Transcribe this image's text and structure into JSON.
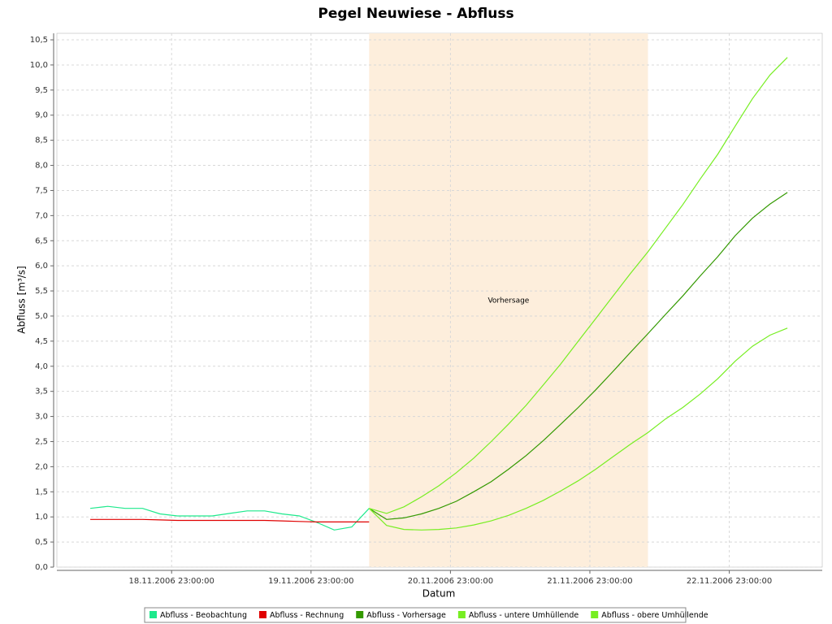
{
  "chart_data": {
    "type": "line",
    "title": "Pegel Neuwiese - Abfluss",
    "xlabel": "Datum",
    "ylabel": "Abfluss [m³/s]",
    "xlim": [
      "2006-11-18T03:15:00",
      "2006-11-23T15:00:00"
    ],
    "xticks": [
      {
        "value": "2006-11-18T23:00:00",
        "label": "18.11.2006 23:00:00"
      },
      {
        "value": "2006-11-19T23:00:00",
        "label": "19.11.2006 23:00:00"
      },
      {
        "value": "2006-11-20T23:00:00",
        "label": "20.11.2006 23:00:00"
      },
      {
        "value": "2006-11-21T23:00:00",
        "label": "21.11.2006 23:00:00"
      },
      {
        "value": "2006-11-22T23:00:00",
        "label": "22.11.2006 23:00:00"
      }
    ],
    "ylim": [
      0,
      10.63
    ],
    "yticks": [
      {
        "value": 0,
        "label": "0,0"
      },
      {
        "value": 0.5,
        "label": "0,5"
      },
      {
        "value": 1,
        "label": "1,0"
      },
      {
        "value": 1.5,
        "label": "1,5"
      },
      {
        "value": 2,
        "label": "2,0"
      },
      {
        "value": 2.5,
        "label": "2,5"
      },
      {
        "value": 3,
        "label": "3,0"
      },
      {
        "value": 3.5,
        "label": "3,5"
      },
      {
        "value": 4,
        "label": "4,0"
      },
      {
        "value": 4.5,
        "label": "4,5"
      },
      {
        "value": 5,
        "label": "5,0"
      },
      {
        "value": 5.5,
        "label": "5,5"
      },
      {
        "value": 6,
        "label": "6,0"
      },
      {
        "value": 6.5,
        "label": "6,5"
      },
      {
        "value": 7,
        "label": "7,0"
      },
      {
        "value": 7.5,
        "label": "7,5"
      },
      {
        "value": 8,
        "label": "8,0"
      },
      {
        "value": 8.5,
        "label": "8,5"
      },
      {
        "value": 9,
        "label": "9,0"
      },
      {
        "value": 9.5,
        "label": "9,5"
      },
      {
        "value": 10,
        "label": "10,0"
      },
      {
        "value": 10.5,
        "label": "10,5"
      }
    ],
    "grid": true,
    "marker": {
      "start": "2006-11-20T09:00:00",
      "end": "2006-11-22T09:00:00",
      "label": "Vorhersage",
      "color": "#fdeedc"
    },
    "series": [
      {
        "name": "Abfluss - Beobachtung",
        "color": "#1de98c",
        "x": [
          "2006-11-18T09:00:00",
          "2006-11-18T12:00:00",
          "2006-11-18T15:00:00",
          "2006-11-18T18:00:00",
          "2006-11-18T21:00:00",
          "2006-11-19T00:00:00",
          "2006-11-19T03:00:00",
          "2006-11-19T06:00:00",
          "2006-11-19T09:00:00",
          "2006-11-19T12:00:00",
          "2006-11-19T15:00:00",
          "2006-11-19T18:00:00",
          "2006-11-19T21:00:00",
          "2006-11-20T00:00:00",
          "2006-11-20T03:00:00",
          "2006-11-20T06:00:00",
          "2006-11-20T09:00:00"
        ],
        "values": [
          1.17,
          1.21,
          1.17,
          1.17,
          1.06,
          1.02,
          1.02,
          1.02,
          1.07,
          1.12,
          1.12,
          1.06,
          1.02,
          0.89,
          0.74,
          0.8,
          1.17
        ]
      },
      {
        "name": "Abfluss - Rechnung",
        "color": "#e00000",
        "x": [
          "2006-11-18T09:00:00",
          "2006-11-18T12:00:00",
          "2006-11-18T15:00:00",
          "2006-11-18T18:00:00",
          "2006-11-18T21:00:00",
          "2006-11-19T00:00:00",
          "2006-11-19T03:00:00",
          "2006-11-19T06:00:00",
          "2006-11-19T09:00:00",
          "2006-11-19T12:00:00",
          "2006-11-19T15:00:00",
          "2006-11-19T18:00:00",
          "2006-11-19T21:00:00",
          "2006-11-20T00:00:00",
          "2006-11-20T03:00:00",
          "2006-11-20T06:00:00",
          "2006-11-20T09:00:00"
        ],
        "values": [
          0.95,
          0.95,
          0.95,
          0.95,
          0.94,
          0.93,
          0.93,
          0.93,
          0.93,
          0.93,
          0.93,
          0.92,
          0.91,
          0.9,
          0.9,
          0.9,
          0.9
        ]
      },
      {
        "name": "Abfluss - Vorhersage",
        "color": "#339900",
        "x": [
          "2006-11-20T09:00:00",
          "2006-11-20T12:00:00",
          "2006-11-20T15:00:00",
          "2006-11-20T18:00:00",
          "2006-11-20T21:00:00",
          "2006-11-21T00:00:00",
          "2006-11-21T03:00:00",
          "2006-11-21T06:00:00",
          "2006-11-21T09:00:00",
          "2006-11-21T12:00:00",
          "2006-11-21T15:00:00",
          "2006-11-21T18:00:00",
          "2006-11-21T21:00:00",
          "2006-11-22T00:00:00",
          "2006-11-22T03:00:00",
          "2006-11-22T06:00:00",
          "2006-11-22T09:00:00",
          "2006-11-22T12:00:00",
          "2006-11-22T15:00:00",
          "2006-11-22T18:00:00",
          "2006-11-22T21:00:00",
          "2006-11-23T00:00:00",
          "2006-11-23T03:00:00",
          "2006-11-23T06:00:00",
          "2006-11-23T09:00:00"
        ],
        "values": [
          1.17,
          0.95,
          0.98,
          1.06,
          1.17,
          1.31,
          1.5,
          1.7,
          1.95,
          2.22,
          2.52,
          2.85,
          3.18,
          3.53,
          3.9,
          4.28,
          4.65,
          5.03,
          5.4,
          5.8,
          6.18,
          6.6,
          6.95,
          7.23,
          7.46
        ]
      },
      {
        "name": "Abfluss - untere Umhüllende",
        "color": "#77ee22",
        "x": [
          "2006-11-20T09:00:00",
          "2006-11-20T12:00:00",
          "2006-11-20T15:00:00",
          "2006-11-20T18:00:00",
          "2006-11-20T21:00:00",
          "2006-11-21T00:00:00",
          "2006-11-21T03:00:00",
          "2006-11-21T06:00:00",
          "2006-11-21T09:00:00",
          "2006-11-21T12:00:00",
          "2006-11-21T15:00:00",
          "2006-11-21T18:00:00",
          "2006-11-21T21:00:00",
          "2006-11-22T00:00:00",
          "2006-11-22T03:00:00",
          "2006-11-22T06:00:00",
          "2006-11-22T09:00:00",
          "2006-11-22T12:00:00",
          "2006-11-22T15:00:00",
          "2006-11-22T18:00:00",
          "2006-11-22T21:00:00",
          "2006-11-23T00:00:00",
          "2006-11-23T03:00:00",
          "2006-11-23T06:00:00",
          "2006-11-23T09:00:00"
        ],
        "values": [
          1.17,
          0.83,
          0.75,
          0.74,
          0.75,
          0.78,
          0.84,
          0.92,
          1.03,
          1.17,
          1.33,
          1.52,
          1.72,
          1.95,
          2.2,
          2.45,
          2.68,
          2.95,
          3.18,
          3.45,
          3.75,
          4.1,
          4.4,
          4.62,
          4.76
        ]
      },
      {
        "name": "Abfluss - obere Umhüllende",
        "color": "#77ee22",
        "x": [
          "2006-11-20T09:00:00",
          "2006-11-20T12:00:00",
          "2006-11-20T15:00:00",
          "2006-11-20T18:00:00",
          "2006-11-20T21:00:00",
          "2006-11-21T00:00:00",
          "2006-11-21T03:00:00",
          "2006-11-21T06:00:00",
          "2006-11-21T09:00:00",
          "2006-11-21T12:00:00",
          "2006-11-21T15:00:00",
          "2006-11-21T18:00:00",
          "2006-11-21T21:00:00",
          "2006-11-22T00:00:00",
          "2006-11-22T03:00:00",
          "2006-11-22T06:00:00",
          "2006-11-22T09:00:00",
          "2006-11-22T12:00:00",
          "2006-11-22T15:00:00",
          "2006-11-22T18:00:00",
          "2006-11-22T21:00:00",
          "2006-11-23T00:00:00",
          "2006-11-23T03:00:00",
          "2006-11-23T06:00:00",
          "2006-11-23T09:00:00"
        ],
        "values": [
          1.17,
          1.07,
          1.2,
          1.4,
          1.62,
          1.88,
          2.17,
          2.5,
          2.85,
          3.22,
          3.63,
          4.05,
          4.5,
          4.95,
          5.4,
          5.85,
          6.28,
          6.75,
          7.22,
          7.73,
          8.22,
          8.78,
          9.33,
          9.8,
          10.15
        ]
      }
    ]
  }
}
